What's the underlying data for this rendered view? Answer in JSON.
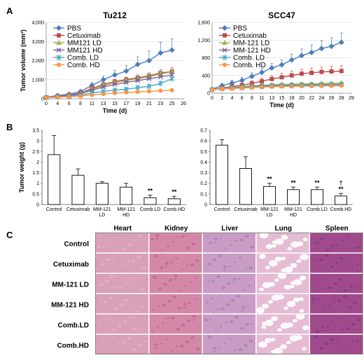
{
  "panels": {
    "A": "A",
    "B": "B",
    "C": "C"
  },
  "series_styles": [
    {
      "color": "#4a7ebb",
      "marker": "diamond"
    },
    {
      "color": "#be4b48",
      "marker": "square"
    },
    {
      "color": "#98b954",
      "marker": "triangle"
    },
    {
      "color": "#7d60a0",
      "marker": "x"
    },
    {
      "color": "#46aac5",
      "marker": "star"
    },
    {
      "color": "#f79646",
      "marker": "circle"
    }
  ],
  "chart_data": [
    {
      "type": "line",
      "title": "Tu212",
      "ylabel": "Tumor volume (mm³)",
      "xlabel": "Time (d)",
      "x": [
        0,
        4,
        6,
        8,
        11,
        13,
        15,
        17,
        19,
        21,
        23,
        25
      ],
      "xticks": [
        0,
        4,
        6,
        8,
        11,
        13,
        15,
        17,
        19,
        21,
        23,
        25,
        26
      ],
      "xticklabels": [
        "0",
        "4",
        "6",
        "8",
        "11",
        "13",
        "15",
        "17",
        "19",
        "21",
        "23",
        "25",
        "26"
      ],
      "ylim": [
        0,
        4000
      ],
      "yticks": [
        0,
        1000,
        2000,
        3000,
        4000
      ],
      "yticklabels": [
        "0",
        "1,000",
        "2,000",
        "3,000",
        "4,000"
      ],
      "legend_position": "top-left",
      "series": [
        {
          "name": "PBS",
          "values": [
            80,
            170,
            240,
            380,
            700,
            1000,
            1250,
            1450,
            1800,
            2000,
            2400,
            2550
          ],
          "errors": [
            30,
            50,
            60,
            80,
            150,
            200,
            250,
            300,
            400,
            500,
            550,
            600
          ]
        },
        {
          "name": "Cetuximab",
          "values": [
            70,
            140,
            200,
            300,
            550,
            750,
            900,
            1000,
            1100,
            1200,
            1350,
            1420
          ],
          "errors": [
            20,
            40,
            50,
            60,
            80,
            100,
            120,
            130,
            150,
            160,
            180,
            200
          ]
        },
        {
          "name": "MM121 LD",
          "values": [
            70,
            130,
            180,
            270,
            500,
            700,
            850,
            950,
            1050,
            1150,
            1300,
            1400
          ],
          "errors": [
            20,
            30,
            40,
            50,
            70,
            90,
            100,
            110,
            120,
            130,
            140,
            150
          ]
        },
        {
          "name": "MM121 HD",
          "values": [
            70,
            120,
            170,
            250,
            450,
            620,
            750,
            850,
            950,
            1050,
            1150,
            1250
          ],
          "errors": [
            20,
            30,
            40,
            50,
            60,
            80,
            90,
            100,
            110,
            120,
            130,
            140
          ]
        },
        {
          "name": "Comb. LD",
          "values": [
            60,
            100,
            130,
            180,
            300,
            380,
            450,
            500,
            580,
            650,
            800,
            1050
          ],
          "errors": [
            15,
            20,
            30,
            40,
            50,
            60,
            70,
            80,
            90,
            100,
            120,
            150
          ]
        },
        {
          "name": "Comb. HD",
          "values": [
            60,
            90,
            110,
            140,
            200,
            250,
            300,
            330,
            360,
            390,
            420,
            450
          ],
          "errors": [
            15,
            20,
            20,
            30,
            30,
            40,
            40,
            50,
            50,
            60,
            60,
            70
          ]
        }
      ]
    },
    {
      "type": "line",
      "title": "SCC47",
      "xlabel": "Time (d)",
      "x": [
        0,
        2,
        4,
        6,
        9,
        11,
        13,
        15,
        18,
        20,
        22,
        24,
        26,
        28
      ],
      "xticks": [
        0,
        2,
        4,
        6,
        9,
        11,
        13,
        15,
        18,
        20,
        22,
        24,
        26,
        28,
        29
      ],
      "xticklabels": [
        "0",
        "2",
        "4",
        "6",
        "9",
        "11",
        "13",
        "15",
        "18",
        "20",
        "22",
        "24",
        "26",
        "28",
        "29"
      ],
      "ylim": [
        0,
        1600
      ],
      "yticks": [
        0,
        400,
        800,
        1200,
        1600
      ],
      "yticklabels": [
        "0",
        "400",
        "800",
        "1,200",
        "1,600"
      ],
      "legend_position": "top-left",
      "series": [
        {
          "name": "PBS",
          "values": [
            90,
            170,
            230,
            290,
            380,
            470,
            570,
            640,
            750,
            850,
            920,
            1010,
            1060,
            1150
          ],
          "errors": [
            30,
            50,
            60,
            70,
            80,
            90,
            100,
            110,
            130,
            150,
            170,
            180,
            190,
            210
          ]
        },
        {
          "name": "Cetuximab",
          "values": [
            80,
            120,
            150,
            180,
            220,
            270,
            320,
            360,
            400,
            440,
            460,
            480,
            490,
            500
          ],
          "errors": [
            20,
            30,
            40,
            50,
            60,
            70,
            80,
            90,
            100,
            100,
            110,
            110,
            120,
            120
          ]
        },
        {
          "name": "MM-121 LD",
          "values": [
            80,
            110,
            130,
            150,
            170,
            180,
            190,
            200,
            200,
            210,
            210,
            220,
            220,
            230
          ],
          "errors": [
            15,
            20,
            20,
            25,
            25,
            30,
            30,
            30,
            35,
            35,
            35,
            35,
            40,
            40
          ]
        },
        {
          "name": "MM-121 HD",
          "values": [
            80,
            100,
            120,
            130,
            150,
            160,
            170,
            175,
            180,
            185,
            190,
            190,
            195,
            200
          ],
          "errors": [
            15,
            20,
            20,
            20,
            25,
            25,
            25,
            30,
            30,
            30,
            30,
            30,
            30,
            30
          ]
        },
        {
          "name": "Comb. LD",
          "values": [
            80,
            100,
            110,
            120,
            140,
            150,
            160,
            165,
            170,
            175,
            180,
            180,
            185,
            190
          ],
          "errors": [
            15,
            15,
            20,
            20,
            20,
            25,
            25,
            25,
            25,
            30,
            30,
            30,
            30,
            30
          ]
        },
        {
          "name": "Comb. HD",
          "values": [
            80,
            95,
            105,
            115,
            125,
            135,
            145,
            150,
            155,
            160,
            160,
            165,
            165,
            170
          ],
          "errors": [
            10,
            15,
            15,
            15,
            20,
            20,
            20,
            20,
            25,
            25,
            25,
            25,
            25,
            25
          ]
        }
      ]
    },
    {
      "type": "bar",
      "ylabel": "Tumor weight (g)",
      "categories": [
        "Control",
        "Cetuximab",
        "MM-121 LD",
        "MM-121 HD",
        "Comb.LD",
        "Comb.HD"
      ],
      "values": [
        2.35,
        1.38,
        1.0,
        0.82,
        0.32,
        0.27
      ],
      "errors": [
        0.9,
        0.3,
        0.08,
        0.18,
        0.12,
        0.12
      ],
      "annotations": [
        "",
        "",
        "",
        "",
        "**",
        "**"
      ],
      "ylim": [
        0,
        3.5
      ],
      "yticks": [
        0,
        0.5,
        1,
        1.5,
        2,
        2.5,
        3,
        3.5
      ],
      "yticklabels": [
        "0",
        "0.5",
        "1",
        "1.5",
        "2",
        "2.5",
        "3",
        "3.5"
      ]
    },
    {
      "type": "bar",
      "categories": [
        "Control",
        "Cetuximab",
        "MM-121 LD",
        "MM-121 HD",
        "Comb.LD",
        "Comb.HD"
      ],
      "values": [
        0.56,
        0.34,
        0.17,
        0.14,
        0.14,
        0.08
      ],
      "errors": [
        0.05,
        0.11,
        0.03,
        0.025,
        0.025,
        0.025
      ],
      "annotations": [
        "",
        "",
        "**",
        "**",
        "**",
        "†\n**"
      ],
      "ylim": [
        0,
        0.7
      ],
      "yticks": [
        0,
        0.1,
        0.2,
        0.3,
        0.4,
        0.5,
        0.6,
        0.7
      ],
      "yticklabels": [
        "0",
        "0.1",
        "0.2",
        "0.3",
        "0.4",
        "0.5",
        "0.6",
        "0.7"
      ]
    }
  ],
  "histology": {
    "columns": [
      "Heart",
      "Kidney",
      "Liver",
      "Lung",
      "Spleen"
    ],
    "rows": [
      "Control",
      "Cetuximab",
      "MM-121 LD",
      "MM-121 HD",
      "Comb.LD",
      "Comb.HD"
    ],
    "tissue_colors": [
      "#d9a0b8",
      "#d488a8",
      "#c89cc4",
      "#e5bcd4",
      "#a04a8c"
    ],
    "accent_colors": [
      "#e8bccd",
      "#b8588a",
      "#9a74b0",
      "#ffffff",
      "#6a3a8a"
    ]
  }
}
